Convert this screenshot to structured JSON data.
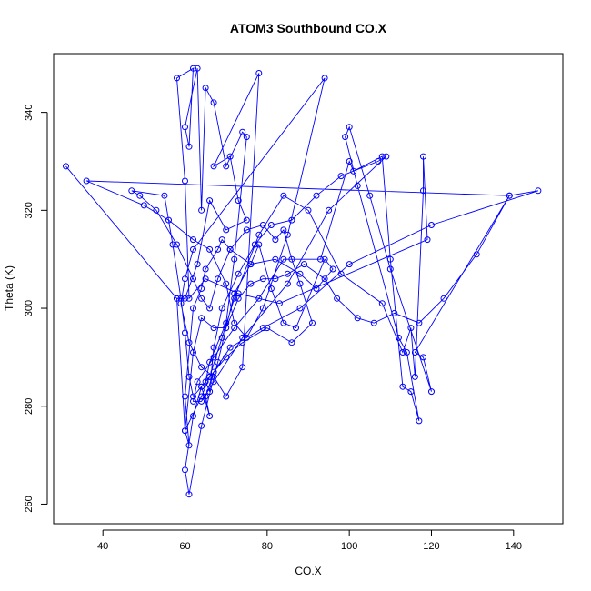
{
  "chart_data": {
    "type": "line",
    "title": "ATOM3 Southbound CO.X",
    "xlabel": "CO.X",
    "ylabel": "Theta (K)",
    "xlim": [
      28,
      152
    ],
    "ylim": [
      256,
      352
    ],
    "xticks": [
      40,
      60,
      80,
      100,
      120,
      140
    ],
    "yticks": [
      260,
      280,
      300,
      320,
      340
    ],
    "grid": false,
    "legend": "none",
    "marker": "open-circle",
    "line_style": "solid",
    "color": "#0000ff",
    "points": [
      [
        31,
        329
      ],
      [
        58,
        302
      ],
      [
        60,
        275
      ],
      [
        64,
        282
      ],
      [
        66,
        286
      ],
      [
        69,
        294
      ],
      [
        72,
        302
      ],
      [
        78,
        315
      ],
      [
        84,
        323
      ],
      [
        90,
        320
      ],
      [
        98,
        307
      ],
      [
        108,
        301
      ],
      [
        113,
        291
      ],
      [
        115,
        296
      ],
      [
        116,
        286
      ],
      [
        118,
        324
      ],
      [
        118,
        331
      ],
      [
        119,
        314
      ],
      [
        83,
        301
      ],
      [
        73,
        303
      ],
      [
        65,
        306
      ],
      [
        61,
        302
      ],
      [
        60,
        326
      ],
      [
        58,
        347
      ],
      [
        62,
        349
      ],
      [
        61,
        333
      ],
      [
        60,
        337
      ],
      [
        63,
        349
      ],
      [
        64,
        320
      ],
      [
        65,
        345
      ],
      [
        67,
        342
      ],
      [
        70,
        329
      ],
      [
        74,
        336
      ],
      [
        75,
        335
      ],
      [
        72,
        310
      ],
      [
        70,
        297
      ],
      [
        66,
        289
      ],
      [
        65,
        285
      ],
      [
        66,
        283
      ],
      [
        67,
        292
      ],
      [
        69,
        300
      ],
      [
        73,
        307
      ],
      [
        77,
        313
      ],
      [
        81,
        317
      ],
      [
        86,
        318
      ],
      [
        92,
        323
      ],
      [
        98,
        327
      ],
      [
        107,
        330
      ],
      [
        109,
        331
      ],
      [
        95,
        320
      ],
      [
        85,
        305
      ],
      [
        74,
        294
      ],
      [
        67,
        285
      ],
      [
        64,
        281
      ],
      [
        62,
        281
      ],
      [
        63,
        285
      ],
      [
        67,
        290
      ],
      [
        72,
        296
      ],
      [
        78,
        302
      ],
      [
        84,
        310
      ],
      [
        93,
        310
      ],
      [
        100,
        330
      ],
      [
        101,
        328
      ],
      [
        108,
        331
      ],
      [
        110,
        310
      ],
      [
        113,
        284
      ],
      [
        115,
        283
      ],
      [
        117,
        277
      ],
      [
        114,
        291
      ],
      [
        112,
        294
      ],
      [
        102,
        325
      ],
      [
        99,
        335
      ],
      [
        100,
        337
      ],
      [
        105,
        323
      ],
      [
        110,
        308
      ],
      [
        120,
        283
      ],
      [
        118,
        290
      ],
      [
        116,
        291
      ],
      [
        139,
        323
      ],
      [
        146,
        324
      ],
      [
        120,
        317
      ],
      [
        100,
        309
      ],
      [
        88,
        300
      ],
      [
        79,
        296
      ],
      [
        71,
        292
      ],
      [
        67,
        287
      ],
      [
        65,
        282
      ],
      [
        66,
        278
      ],
      [
        64,
        284
      ],
      [
        62,
        282
      ],
      [
        61,
        286
      ],
      [
        60,
        295
      ],
      [
        59,
        302
      ],
      [
        57,
        313
      ],
      [
        55,
        323
      ],
      [
        47,
        324
      ],
      [
        49,
        323
      ],
      [
        53,
        320
      ],
      [
        58,
        313
      ],
      [
        62,
        306
      ],
      [
        64,
        302
      ],
      [
        66,
        300
      ],
      [
        68,
        306
      ],
      [
        71,
        312
      ],
      [
        75,
        316
      ],
      [
        79,
        317
      ],
      [
        82,
        314
      ],
      [
        84,
        316
      ],
      [
        86,
        310
      ],
      [
        88,
        305
      ],
      [
        91,
        297
      ],
      [
        86,
        293
      ],
      [
        80,
        296
      ],
      [
        74,
        293
      ],
      [
        70,
        290
      ],
      [
        66,
        286
      ],
      [
        64,
        284
      ],
      [
        62,
        278
      ],
      [
        60,
        267
      ],
      [
        61,
        262
      ],
      [
        64,
        276
      ],
      [
        68,
        289
      ],
      [
        72,
        303
      ],
      [
        76,
        309
      ],
      [
        78,
        313
      ],
      [
        81,
        304
      ],
      [
        84,
        297
      ],
      [
        87,
        296
      ],
      [
        94,
        310
      ],
      [
        96,
        308
      ],
      [
        92,
        304
      ],
      [
        88,
        307
      ],
      [
        82,
        310
      ],
      [
        76,
        309
      ],
      [
        71,
        312
      ],
      [
        69,
        314
      ],
      [
        68,
        312
      ],
      [
        65,
        308
      ],
      [
        64,
        304
      ],
      [
        62,
        300
      ],
      [
        60,
        282
      ],
      [
        61,
        272
      ],
      [
        60,
        275
      ],
      [
        62,
        291
      ],
      [
        64,
        298
      ],
      [
        67,
        296
      ],
      [
        70,
        296
      ],
      [
        73,
        302
      ],
      [
        76,
        305
      ],
      [
        79,
        306
      ],
      [
        82,
        306
      ],
      [
        85,
        307
      ],
      [
        89,
        309
      ],
      [
        94,
        306
      ],
      [
        97,
        302
      ],
      [
        102,
        298
      ],
      [
        106,
        297
      ],
      [
        111,
        299
      ],
      [
        117,
        297
      ],
      [
        123,
        302
      ],
      [
        131,
        311
      ],
      [
        139,
        323
      ],
      [
        36,
        326
      ],
      [
        50,
        321
      ],
      [
        56,
        318
      ],
      [
        62,
        314
      ],
      [
        66,
        312
      ],
      [
        70,
        305
      ],
      [
        72,
        297
      ],
      [
        75,
        294
      ],
      [
        79,
        300
      ],
      [
        85,
        315
      ],
      [
        94,
        347
      ],
      [
        62,
        312
      ],
      [
        60,
        306
      ],
      [
        59,
        301
      ],
      [
        61,
        293
      ],
      [
        64,
        288
      ],
      [
        67,
        286
      ],
      [
        70,
        282
      ],
      [
        74,
        288
      ],
      [
        78,
        348
      ],
      [
        67,
        329
      ],
      [
        71,
        331
      ],
      [
        73,
        322
      ],
      [
        75,
        318
      ],
      [
        70,
        316
      ],
      [
        66,
        322
      ],
      [
        63,
        309
      ],
      [
        60,
        302
      ],
      [
        58,
        302
      ]
    ]
  }
}
